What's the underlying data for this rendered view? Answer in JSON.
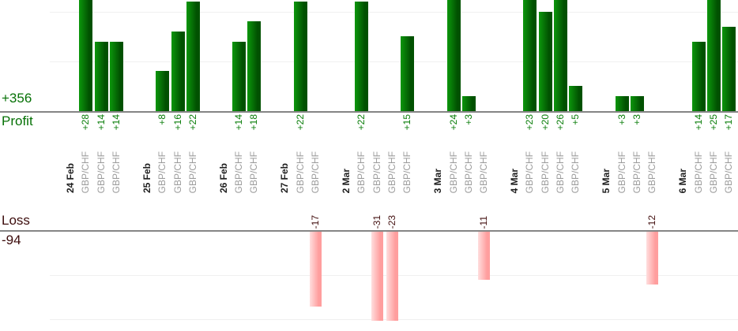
{
  "chart_data": {
    "type": "bar",
    "title": "",
    "profit": {
      "label": "Profit",
      "total_label": "+356",
      "total": 356,
      "gridlines": [
        10,
        20
      ],
      "visible_axis_max": 22.3
    },
    "loss": {
      "label": "Loss",
      "total_label": "-94",
      "total": -94,
      "gridlines": [
        -10,
        -20
      ],
      "visible_axis_min": -20.1
    },
    "groups": [
      {
        "date": "24 Feb",
        "trades": [
          {
            "symbol": "GBP/CHF",
            "value": 28,
            "label": "+28"
          },
          {
            "symbol": "GBP/CHF",
            "value": 14,
            "label": "+14"
          },
          {
            "symbol": "GBP/CHF",
            "value": 14,
            "label": "+14"
          }
        ]
      },
      {
        "date": "25 Feb",
        "trades": [
          {
            "symbol": "GBP/CHF",
            "value": 8,
            "label": "+8"
          },
          {
            "symbol": "GBP/CHF",
            "value": 16,
            "label": "+16"
          },
          {
            "symbol": "GBP/CHF",
            "value": 22,
            "label": "+22"
          }
        ]
      },
      {
        "date": "26 Feb",
        "trades": [
          {
            "symbol": "GBP/CHF",
            "value": 14,
            "label": "+14"
          },
          {
            "symbol": "GBP/CHF",
            "value": 18,
            "label": "+18"
          }
        ]
      },
      {
        "date": "27 Feb",
        "trades": [
          {
            "symbol": "GBP/CHF",
            "value": 22,
            "label": "+22"
          },
          {
            "symbol": "GBP/CHF",
            "value": -17,
            "label": "-17"
          }
        ]
      },
      {
        "date": "2 Mar",
        "trades": [
          {
            "symbol": "GBP/CHF",
            "value": 22,
            "label": "+22"
          },
          {
            "symbol": "GBP/CHF",
            "value": -31,
            "label": "-31"
          },
          {
            "symbol": "GBP/CHF",
            "value": -23,
            "label": "-23"
          },
          {
            "symbol": "GBP/CHF",
            "value": 15,
            "label": "+15"
          }
        ]
      },
      {
        "date": "3 Mar",
        "trades": [
          {
            "symbol": "GBP/CHF",
            "value": 24,
            "label": "+24"
          },
          {
            "symbol": "GBP/CHF",
            "value": 3,
            "label": "+3"
          },
          {
            "symbol": "GBP/CHF",
            "value": -11,
            "label": "-11"
          }
        ]
      },
      {
        "date": "4 Mar",
        "trades": [
          {
            "symbol": "GBP/CHF",
            "value": 23,
            "label": "+23"
          },
          {
            "symbol": "GBP/CHF",
            "value": 20,
            "label": "+20"
          },
          {
            "symbol": "GBP/CHF",
            "value": 26,
            "label": "+26"
          },
          {
            "symbol": "GBP/CHF",
            "value": 5,
            "label": "+5"
          }
        ]
      },
      {
        "date": "5 Mar",
        "trades": [
          {
            "symbol": "GBP/CHF",
            "value": 3,
            "label": "+3"
          },
          {
            "symbol": "GBP/CHF",
            "value": 3,
            "label": "+3"
          },
          {
            "symbol": "GBP/CHF",
            "value": -12,
            "label": "-12"
          }
        ]
      },
      {
        "date": "6 Mar",
        "trades": [
          {
            "symbol": "GBP/CHF",
            "value": 14,
            "label": "+14"
          },
          {
            "symbol": "GBP/CHF",
            "value": 25,
            "label": "+25"
          },
          {
            "symbol": "GBP/CHF",
            "value": 17,
            "label": "+17"
          }
        ]
      }
    ]
  },
  "colors": {
    "profit_text": "#067106",
    "loss_text": "#431010",
    "profit_bar_light": "#0c970c",
    "profit_bar_dark": "#015101",
    "loss_bar_light": "#ffdede",
    "loss_bar_dark": "#ff9e9e",
    "axis_line": "#858585",
    "gridline": "#f0f0f0",
    "symbol_text": "#9c9c9c",
    "date_text": "#1f1f1f"
  }
}
